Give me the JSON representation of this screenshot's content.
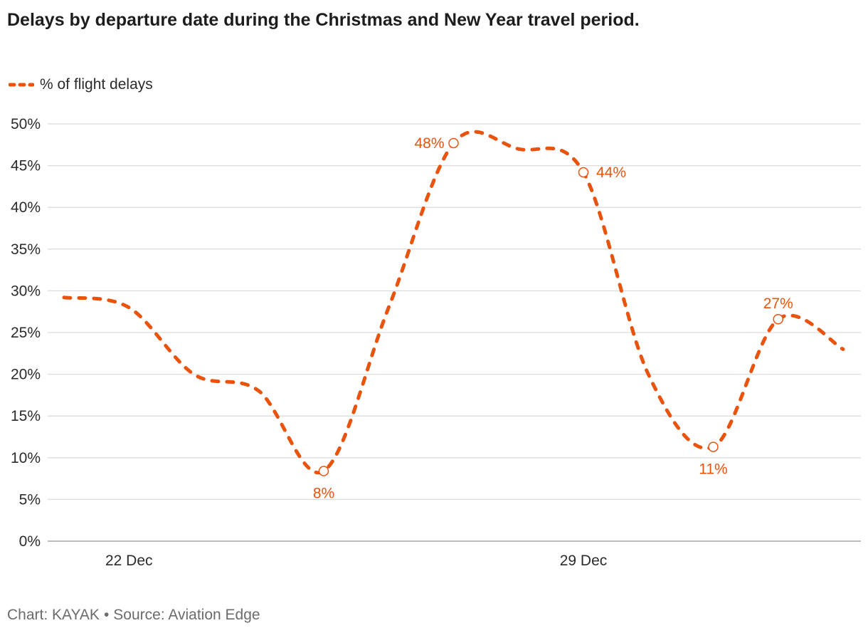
{
  "title": "Delays by departure date during the Christmas and New Year travel period.",
  "footer": {
    "chart_credit": "Chart: KAYAK",
    "separator": "•",
    "source": "Source: Aviation Edge"
  },
  "colors": {
    "series": "#e8530e",
    "grid": "#dcdcdc",
    "axis": "#bdbdbd"
  },
  "chart_data": {
    "type": "line",
    "title": "Delays by departure date during the Christmas and New Year travel period.",
    "xlabel": "",
    "ylabel": "",
    "ylim": [
      0,
      50
    ],
    "xlim": [
      0,
      12.4
    ],
    "grid": true,
    "legend_position": "top-left",
    "y_ticks": [
      {
        "value": 0,
        "label": "0%"
      },
      {
        "value": 5,
        "label": "5%"
      },
      {
        "value": 10,
        "label": "10%"
      },
      {
        "value": 15,
        "label": "15%"
      },
      {
        "value": 20,
        "label": "20%"
      },
      {
        "value": 25,
        "label": "25%"
      },
      {
        "value": 30,
        "label": "30%"
      },
      {
        "value": 35,
        "label": "35%"
      },
      {
        "value": 40,
        "label": "40%"
      },
      {
        "value": 45,
        "label": "45%"
      },
      {
        "value": 50,
        "label": "50%"
      }
    ],
    "x_ticks": [
      {
        "value": 1,
        "label": "22 Dec"
      },
      {
        "value": 8,
        "label": "29 Dec"
      }
    ],
    "series": [
      {
        "name": "% of flight delays",
        "style": "dashed",
        "points": [
          {
            "x": 0,
            "y": 29.2
          },
          {
            "x": 1,
            "y": 28.0
          },
          {
            "x": 2,
            "y": 20.0
          },
          {
            "x": 3,
            "y": 18.0
          },
          {
            "x": 4,
            "y": 8.4,
            "label": "8%",
            "label_pos": "below"
          },
          {
            "x": 5,
            "y": 28.0
          },
          {
            "x": 6,
            "y": 47.7,
            "label": "48%",
            "label_pos": "left"
          },
          {
            "x": 7,
            "y": 47.0
          },
          {
            "x": 8,
            "y": 44.2,
            "label": "44%",
            "label_pos": "right"
          },
          {
            "x": 9,
            "y": 20.0
          },
          {
            "x": 10,
            "y": 11.3,
            "label": "11%",
            "label_pos": "below"
          },
          {
            "x": 11,
            "y": 26.6,
            "label": "27%",
            "label_pos": "above"
          },
          {
            "x": 12,
            "y": 23.0
          }
        ]
      }
    ]
  }
}
